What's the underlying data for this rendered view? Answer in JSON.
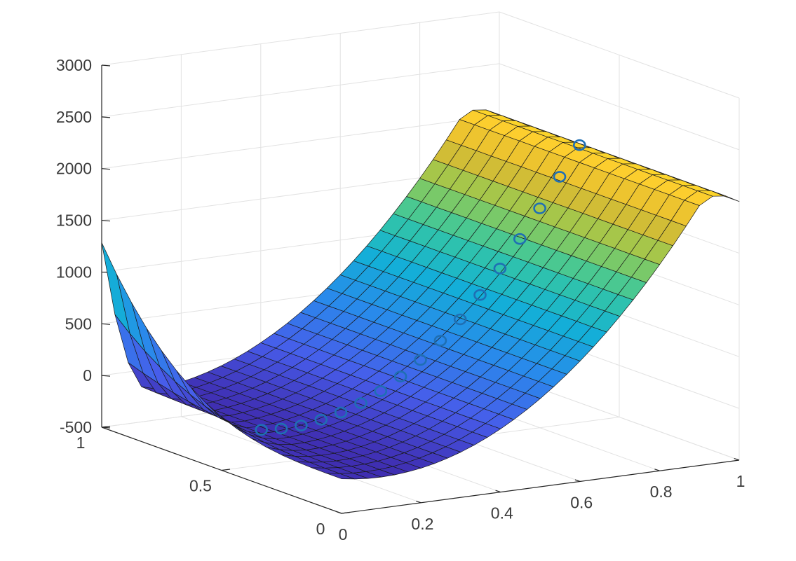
{
  "chart_data": {
    "type": "surface",
    "title": "",
    "xlabel": "",
    "ylabel": "",
    "zlabel": "",
    "xlim": [
      0,
      1
    ],
    "ylim": [
      0,
      1
    ],
    "zlim": [
      -500,
      3000
    ],
    "x_ticks": [
      0,
      0.2,
      0.4,
      0.6,
      0.8,
      1
    ],
    "x_tick_labels": [
      "0",
      "0.2",
      "0.4",
      "0.6",
      "0.8",
      "1"
    ],
    "y_ticks": [
      0,
      0.5,
      1
    ],
    "y_tick_labels": [
      "0",
      "0.5",
      "1"
    ],
    "z_ticks": [
      -500,
      0,
      500,
      1000,
      1500,
      2000,
      2500,
      3000
    ],
    "z_tick_labels": [
      "-500",
      "0",
      "500",
      "1000",
      "1500",
      "2000",
      "2500",
      "3000"
    ],
    "grid": true,
    "colormap": "parula",
    "surface_function": "z approx. 2800*(x-0.1)^2/0.81 - 200 with an upturn to about 1250 along the left edge near y = 1 and a drop to about 1650 along the far right edge",
    "surface_samples": {
      "x": [
        0,
        0.1,
        0.2,
        0.3,
        0.4,
        0.5,
        0.6,
        0.7,
        0.8,
        0.9,
        1.0
      ],
      "z_at_y_0.5": [
        -150,
        -200,
        -165,
        -60,
        110,
        355,
        670,
        1050,
        1500,
        2000,
        1650
      ]
    },
    "series": [
      {
        "type": "scatter3",
        "marker": "circle",
        "color": "#1f6fb4",
        "points": [
          {
            "x": 0.1,
            "z": -160
          },
          {
            "x": 0.15,
            "z": -175
          },
          {
            "x": 0.2,
            "z": -170
          },
          {
            "x": 0.25,
            "z": -140
          },
          {
            "x": 0.3,
            "z": -95
          },
          {
            "x": 0.35,
            "z": -30
          },
          {
            "x": 0.4,
            "z": 60
          },
          {
            "x": 0.45,
            "z": 175
          },
          {
            "x": 0.5,
            "z": 310
          },
          {
            "x": 0.55,
            "z": 470
          },
          {
            "x": 0.6,
            "z": 650
          },
          {
            "x": 0.65,
            "z": 860
          },
          {
            "x": 0.7,
            "z": 1090
          },
          {
            "x": 0.75,
            "z": 1350
          },
          {
            "x": 0.8,
            "z": 1620
          },
          {
            "x": 0.85,
            "z": 1900
          },
          {
            "x": 0.9,
            "z": 2180
          }
        ]
      }
    ]
  }
}
